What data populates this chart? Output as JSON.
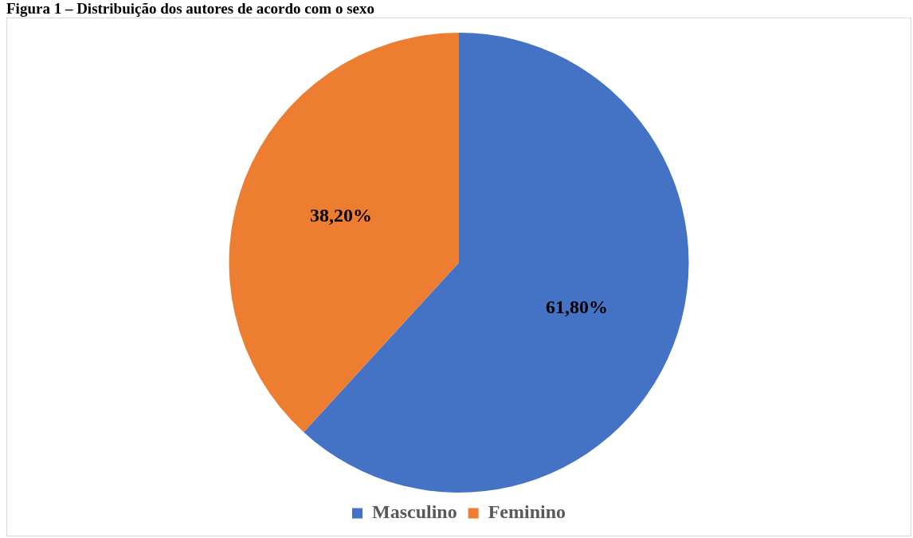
{
  "chart_data": {
    "type": "pie",
    "title": "Figura 1 – Distribuição dos autores de acordo com o sexo",
    "categories": [
      "Masculino",
      "Feminino"
    ],
    "values": [
      61.8,
      38.2
    ],
    "colors": [
      "#4472c4",
      "#ed7d31"
    ],
    "value_labels": [
      "61,80%",
      "38,20%"
    ],
    "legend": "bottom"
  }
}
